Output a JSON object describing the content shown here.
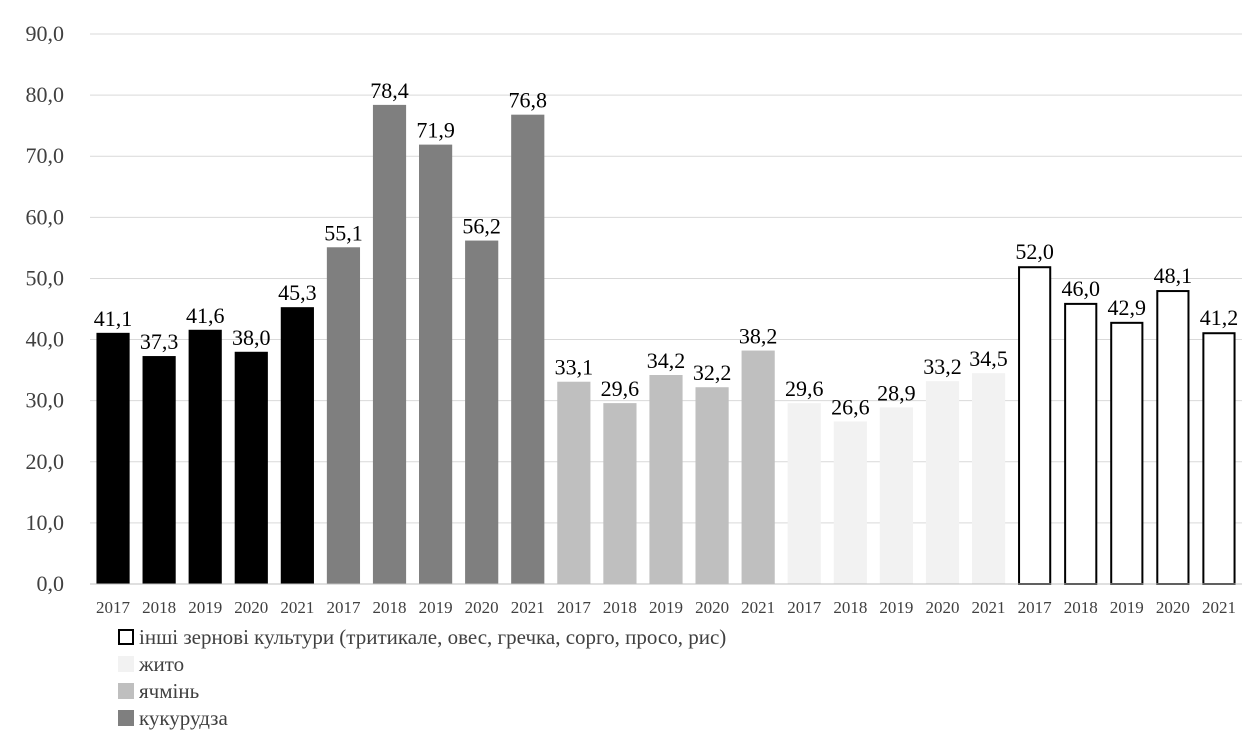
{
  "chart_data": {
    "type": "bar",
    "title": "",
    "xlabel": "",
    "ylabel": "",
    "ylim": [
      0,
      90
    ],
    "yticks": [
      "0,0",
      "10,0",
      "20,0",
      "30,0",
      "40,0",
      "50,0",
      "60,0",
      "70,0",
      "80,0",
      "90,0"
    ],
    "grid": true,
    "legend_position": "bottom-left",
    "categories": [
      "2017",
      "2018",
      "2019",
      "2020",
      "2021"
    ],
    "series": [
      {
        "name": "",
        "color": "#000000",
        "stroke": "#000000",
        "values": [
          41.1,
          37.3,
          41.6,
          38.0,
          45.3
        ],
        "labels": [
          "41,1",
          "37,3",
          "41,6",
          "38,0",
          "45,3"
        ]
      },
      {
        "name": "кукурудза",
        "color": "#7f7f7f",
        "stroke": "#7f7f7f",
        "values": [
          55.1,
          78.4,
          71.9,
          56.2,
          76.8
        ],
        "labels": [
          "55,1",
          "78,4",
          "71,9",
          "56,2",
          "76,8"
        ]
      },
      {
        "name": "ячмінь",
        "color": "#bfbfbf",
        "stroke": "#bfbfbf",
        "values": [
          33.1,
          29.6,
          34.2,
          32.2,
          38.2
        ],
        "labels": [
          "33,1",
          "29,6",
          "34,2",
          "32,2",
          "38,2"
        ]
      },
      {
        "name": "жито",
        "color": "#f2f2f2",
        "stroke": "#f2f2f2",
        "values": [
          29.6,
          26.6,
          28.9,
          33.2,
          34.5
        ],
        "labels": [
          "29,6",
          "26,6",
          "28,9",
          "33,2",
          "34,5"
        ]
      },
      {
        "name": "інші зернові культури (тритикале, овес, гречка, сорго, просо, рис)",
        "color": "#ffffff",
        "stroke": "#000000",
        "values": [
          52.0,
          46.0,
          42.9,
          48.1,
          41.2
        ],
        "labels": [
          "52,0",
          "46,0",
          "42,9",
          "48,1",
          "41,2"
        ]
      }
    ],
    "legend": [
      "інші зернові культури (тритикале, овес, гречка, сорго, просо, рис)",
      "жито",
      "ячмінь",
      "кукурудза"
    ],
    "colors": {
      "grid": "#d9d9d9",
      "axis": "#bfbfbf",
      "text": "#404040",
      "label": "#000000"
    }
  }
}
